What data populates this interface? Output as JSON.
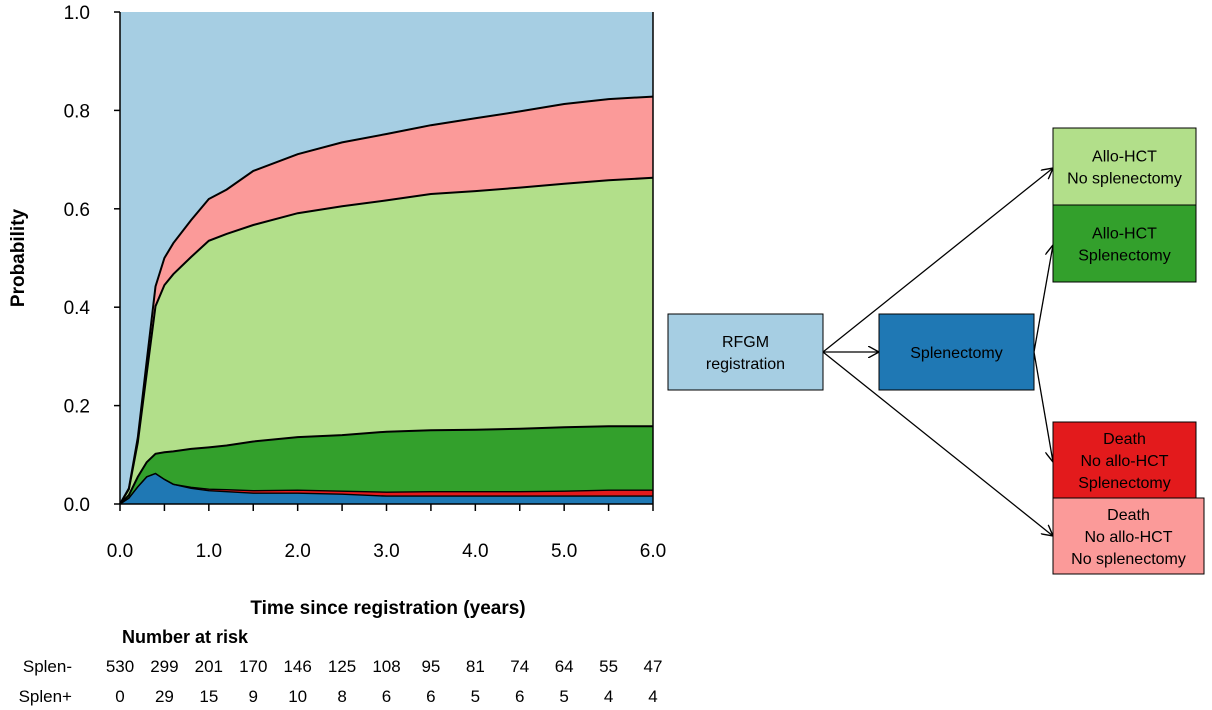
{
  "chart_data": {
    "type": "area",
    "xlabel": "Time since registration (years)",
    "ylabel": "Probability",
    "xlim": [
      0,
      6
    ],
    "ylim": [
      0,
      1
    ],
    "x_ticks": [
      "0.0",
      "1.0",
      "2.0",
      "3.0",
      "4.0",
      "5.0",
      "6.0"
    ],
    "y_ticks": [
      "0.0",
      "0.2",
      "0.4",
      "0.6",
      "0.8",
      "1.0"
    ],
    "stacking_order": [
      "Splenectomy",
      "Death No allo-HCT Splenectomy",
      "Allo-HCT Splenectomy",
      "Allo-HCT No splenectomy",
      "Death No allo-HCT No splenectomy",
      "RFGM registration"
    ],
    "x": [
      0,
      0.1,
      0.2,
      0.3,
      0.4,
      0.5,
      0.6,
      0.8,
      1.0,
      1.2,
      1.5,
      2.0,
      2.5,
      3.0,
      3.5,
      4.0,
      4.5,
      5.0,
      5.5,
      6.0
    ],
    "series": [
      {
        "name": "Splenectomy",
        "color": "#1f78b4",
        "values": [
          0,
          0.012,
          0.035,
          0.055,
          0.062,
          0.05,
          0.04,
          0.032,
          0.027,
          0.025,
          0.022,
          0.022,
          0.02,
          0.016,
          0.016,
          0.016,
          0.016,
          0.016,
          0.016,
          0.016
        ]
      },
      {
        "name": "Death\nNo allo-HCT\nSplenectomy",
        "color": "#e31a1c",
        "values": [
          0,
          0,
          0,
          0,
          0,
          0,
          0,
          0.002,
          0.003,
          0.004,
          0.005,
          0.006,
          0.006,
          0.008,
          0.009,
          0.009,
          0.009,
          0.01,
          0.012,
          0.012
        ]
      },
      {
        "name": "Allo-HCT\nSplenectomy",
        "color": "#33a02c",
        "values": [
          0,
          0.006,
          0.02,
          0.03,
          0.04,
          0.055,
          0.067,
          0.078,
          0.085,
          0.09,
          0.1,
          0.108,
          0.114,
          0.123,
          0.125,
          0.126,
          0.128,
          0.13,
          0.13,
          0.13
        ]
      },
      {
        "name": "Allo-HCT\nNo splenectomy",
        "color": "#b2df8a",
        "values": [
          0,
          0.012,
          0.07,
          0.18,
          0.3,
          0.34,
          0.36,
          0.39,
          0.42,
          0.43,
          0.44,
          0.455,
          0.465,
          0.47,
          0.48,
          0.485,
          0.49,
          0.495,
          0.5,
          0.505
        ]
      },
      {
        "name": "Death\nNo allo-HCT\nNo splenectomy",
        "color": "#fb9a99",
        "values": [
          0,
          0.002,
          0.01,
          0.025,
          0.04,
          0.055,
          0.063,
          0.075,
          0.085,
          0.09,
          0.11,
          0.12,
          0.13,
          0.135,
          0.14,
          0.148,
          0.155,
          0.162,
          0.165,
          0.165
        ]
      },
      {
        "name": "RFGM\nregistration",
        "color": "#a6cee3",
        "values": [
          1,
          0.968,
          0.865,
          0.71,
          0.558,
          0.5,
          0.47,
          0.423,
          0.38,
          0.361,
          0.323,
          0.289,
          0.265,
          0.248,
          0.23,
          0.216,
          0.202,
          0.187,
          0.177,
          0.172
        ]
      }
    ]
  },
  "risk_table": {
    "title": "Number at risk",
    "rows": [
      {
        "label": "Splen-",
        "values": [
          "530",
          "299",
          "201",
          "170",
          "146",
          "125",
          "108",
          "95",
          "81",
          "74",
          "64",
          "55",
          "47"
        ]
      },
      {
        "label": "Splen+",
        "values": [
          "0",
          "29",
          "15",
          "9",
          "10",
          "8",
          "6",
          "6",
          "5",
          "6",
          "5",
          "4",
          "4"
        ]
      }
    ]
  },
  "diagram": {
    "boxes": [
      {
        "id": "registration",
        "lines": [
          "RFGM",
          "registration"
        ],
        "color": "#a6cee3"
      },
      {
        "id": "splenectomy",
        "lines": [
          "Splenectomy"
        ],
        "color": "#1f78b4"
      },
      {
        "id": "allo-no-splen",
        "lines": [
          "Allo-HCT",
          "No splenectomy"
        ],
        "color": "#b2df8a"
      },
      {
        "id": "allo-splen",
        "lines": [
          "Allo-HCT",
          "Splenectomy"
        ],
        "color": "#33a02c"
      },
      {
        "id": "death-splen",
        "lines": [
          "Death",
          "No allo-HCT",
          "Splenectomy"
        ],
        "color": "#e31a1c"
      },
      {
        "id": "death-no-splen",
        "lines": [
          "Death",
          "No allo-HCT",
          "No splenectomy"
        ],
        "color": "#fb9a99"
      }
    ]
  }
}
